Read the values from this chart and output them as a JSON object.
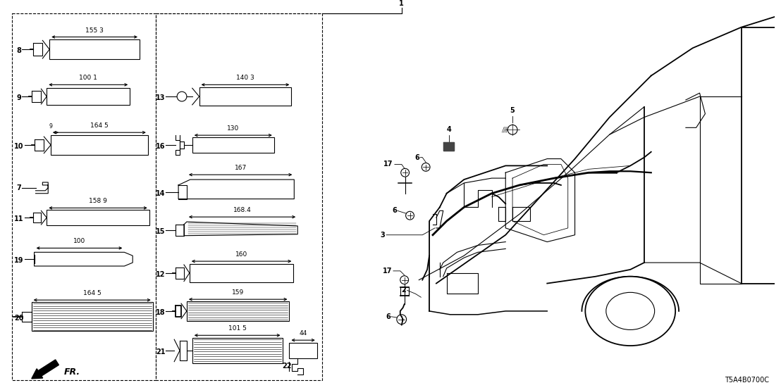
{
  "fig_width": 11.08,
  "fig_height": 5.54,
  "bg_color": "#ffffff",
  "line_color": "#000000",
  "part_number_label": "T5A4B0700C"
}
